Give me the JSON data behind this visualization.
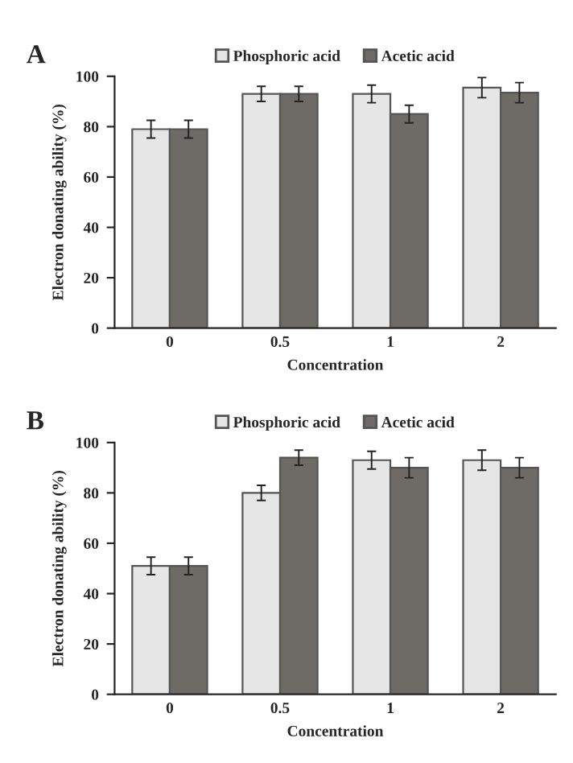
{
  "chart_data": [
    {
      "type": "bar",
      "title": "A",
      "xlabel": "Concentration",
      "ylabel": "Electron donating ability (%)",
      "categories": [
        "0",
        "0.5",
        "1",
        "2"
      ],
      "ylim": [
        0,
        100
      ],
      "yticks": [
        0,
        20,
        40,
        60,
        80,
        100
      ],
      "grid": false,
      "legend": "top",
      "series": [
        {
          "name": "Phosphoric acid",
          "color": "#e6e6e6",
          "values": [
            79,
            93,
            93,
            95.5
          ],
          "errors": [
            3.5,
            3,
            3.5,
            4
          ]
        },
        {
          "name": "Acetic acid",
          "color": "#6e6a66",
          "values": [
            79,
            93,
            85,
            93.5
          ],
          "errors": [
            3.5,
            3,
            3.5,
            4
          ]
        }
      ]
    },
    {
      "type": "bar",
      "title": "B",
      "xlabel": "Concentration",
      "ylabel": "Electron donating ability (%)",
      "categories": [
        "0",
        "0.5",
        "1",
        "2"
      ],
      "ylim": [
        0,
        100
      ],
      "yticks": [
        0,
        20,
        40,
        60,
        80,
        100
      ],
      "grid": false,
      "legend": "top",
      "series": [
        {
          "name": "Phosphoric acid",
          "color": "#e6e6e6",
          "values": [
            51,
            80,
            93,
            93
          ],
          "errors": [
            3.5,
            3,
            3.5,
            4
          ]
        },
        {
          "name": "Acetic acid",
          "color": "#6e6a66",
          "values": [
            51,
            94,
            90,
            90
          ],
          "errors": [
            3.5,
            3,
            4,
            4
          ]
        }
      ]
    }
  ]
}
